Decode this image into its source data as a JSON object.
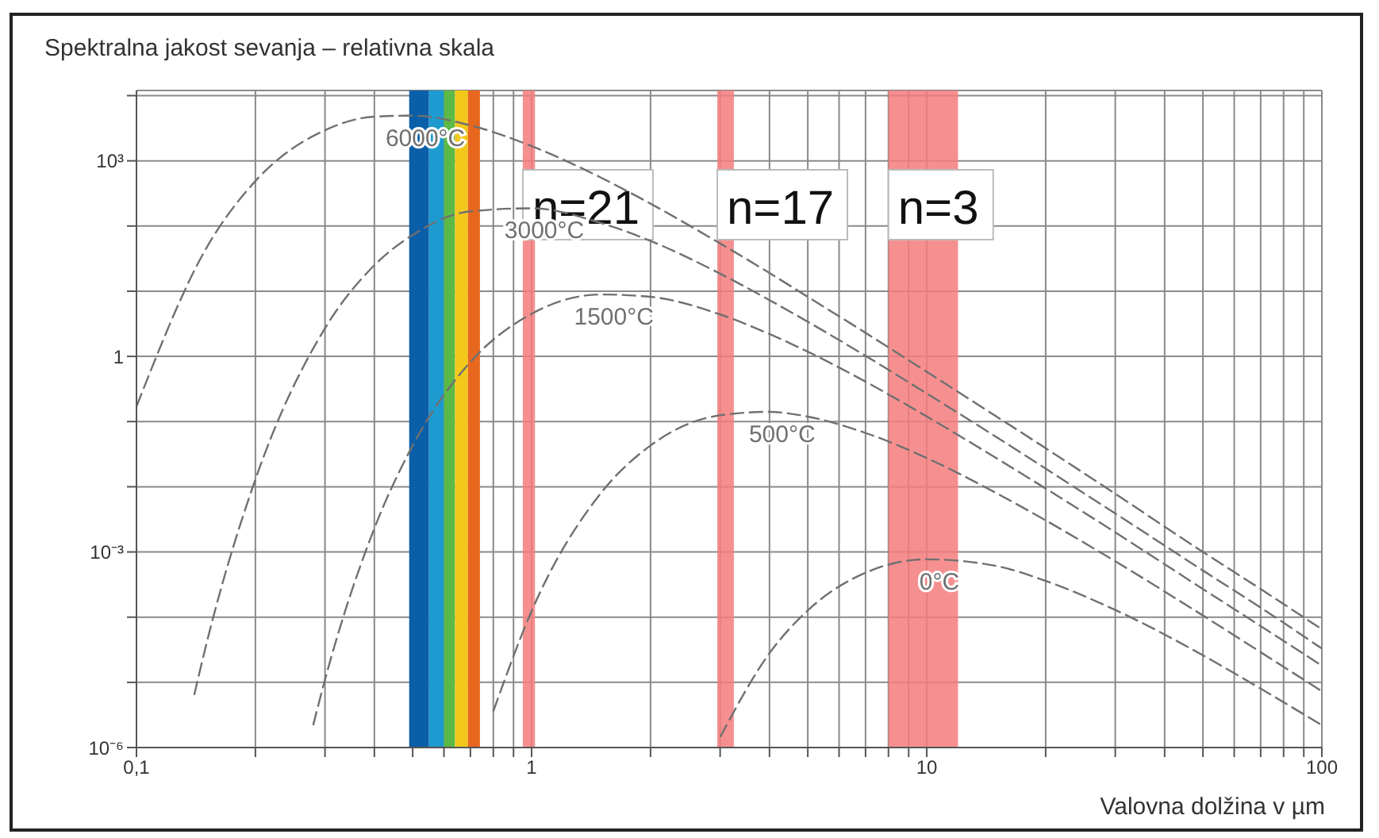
{
  "chart_data": {
    "type": "line",
    "title": "Spektralna jakost sevanja – relativna skala",
    "xlabel": "Valovna dolžina v µm",
    "log": "xy",
    "grid": true,
    "marker": "none",
    "line_style": "dashed",
    "xlim": [
      0.1,
      100
    ],
    "xticks": [
      {
        "value": 0.1,
        "label": "0,1"
      },
      {
        "value": 0.2,
        "label": null
      },
      {
        "value": 0.3,
        "label": null
      },
      {
        "value": 0.4,
        "label": null
      },
      {
        "value": 0.5,
        "label": null
      },
      {
        "value": 0.6,
        "label": null
      },
      {
        "value": 0.7,
        "label": null
      },
      {
        "value": 0.8,
        "label": null
      },
      {
        "value": 0.9,
        "label": null
      },
      1,
      {
        "value": 2,
        "label": null
      },
      {
        "value": 3,
        "label": null
      },
      {
        "value": 4,
        "label": null
      },
      {
        "value": 5,
        "label": null
      },
      {
        "value": 6,
        "label": null
      },
      {
        "value": 7,
        "label": null
      },
      {
        "value": 8,
        "label": null
      },
      {
        "value": 9,
        "label": null
      },
      10,
      {
        "value": 20,
        "label": null
      },
      {
        "value": 30,
        "label": null
      },
      {
        "value": 40,
        "label": null
      },
      {
        "value": 50,
        "label": null
      },
      {
        "value": 60,
        "label": null
      },
      {
        "value": 70,
        "label": null
      },
      {
        "value": 80,
        "label": null
      },
      {
        "value": 90,
        "label": null
      },
      100
    ],
    "ylim": [
      1e-06,
      12000
    ],
    "yticks": [
      {
        "value": 1e-06,
        "label": "10⁻⁶"
      },
      {
        "value": 1e-05,
        "label": null
      },
      {
        "value": 0.0001,
        "label": null
      },
      {
        "value": 0.001,
        "label": "10⁻³"
      },
      {
        "value": 0.01,
        "label": null
      },
      {
        "value": 0.1,
        "label": null
      },
      1,
      {
        "value": 10,
        "label": null
      },
      {
        "value": 100,
        "label": null
      },
      {
        "value": 1000,
        "label": "10³"
      },
      {
        "value": 10000,
        "label": null
      }
    ],
    "bands": [
      {
        "axis": "x",
        "from": 0.49,
        "to": 0.55,
        "color": "#0b5fa8"
      },
      {
        "axis": "x",
        "from": 0.55,
        "to": 0.6,
        "color": "#1d9bd0"
      },
      {
        "axis": "x",
        "from": 0.6,
        "to": 0.64,
        "color": "#5cb946"
      },
      {
        "axis": "x",
        "from": 0.64,
        "to": 0.69,
        "color": "#f2c81a"
      },
      {
        "axis": "x",
        "from": 0.69,
        "to": 0.74,
        "color": "#e8671e"
      },
      {
        "axis": "x",
        "from": 0.95,
        "to": 1.02,
        "color": "#f47c7c",
        "label": "n=21"
      },
      {
        "axis": "x",
        "from": 2.95,
        "to": 3.25,
        "color": "#f47c7c",
        "label": "n=17"
      },
      {
        "axis": "x",
        "from": 8,
        "to": 12,
        "color": "#f47c7c",
        "label": "n=3"
      }
    ],
    "series": [
      {
        "name": "6000°C",
        "color": "#707070",
        "x": [
          0.1,
          0.15,
          0.2,
          0.3,
          0.4,
          0.5,
          0.7,
          1,
          1.5,
          2,
          3,
          4,
          5,
          7,
          10,
          15,
          20,
          30,
          50,
          70,
          100
        ],
        "values": [
          0.17,
          45,
          490,
          2950,
          4750,
          4930,
          3500,
          1680,
          550,
          220,
          54,
          19,
          8.2,
          2.3,
          0.58,
          0.12,
          0.039,
          0.0078,
          0.001,
          0.00027,
          6.5e-05
        ]
      },
      {
        "name": "3000°C",
        "color": "#707070",
        "x": [
          0.14,
          0.15,
          0.2,
          0.3,
          0.4,
          0.5,
          0.7,
          1,
          1.5,
          2,
          3,
          4,
          5,
          7,
          10,
          15,
          20,
          30,
          50,
          70,
          100
        ],
        "values": [
          6.4e-06,
          3.7e-05,
          0.013,
          2.7,
          25,
          73,
          168,
          187,
          111,
          59,
          18.6,
          7.3,
          3.4,
          1.02,
          0.27,
          0.058,
          0.019,
          0.0039,
          0.00052,
          0.00014,
          3.3e-05
        ]
      },
      {
        "name": "1500°C",
        "color": "#707070",
        "x": [
          0.28,
          0.3,
          0.4,
          0.5,
          0.7,
          1,
          1.5,
          2,
          3,
          4,
          5,
          7,
          10,
          15,
          20,
          30,
          50,
          70,
          100
        ],
        "values": [
          2.2e-06,
          1.1e-05,
          0.0023,
          0.043,
          0.82,
          4.5,
          8.9,
          8.2,
          4.4,
          2.2,
          1.18,
          0.41,
          0.12,
          0.0275,
          0.0094,
          0.002,
          0.00027,
          7.3e-05,
          1.8e-05
        ]
      },
      {
        "name": "500°C",
        "color": "#707070",
        "x": [
          0.8,
          1,
          1.5,
          2,
          3,
          4,
          5,
          7,
          10,
          15,
          20,
          30,
          50,
          70,
          100
        ],
        "values": [
          3.6e-06,
          0.000124,
          0.0081,
          0.043,
          0.125,
          0.141,
          0.119,
          0.067,
          0.0276,
          0.008,
          0.00305,
          0.00072,
          0.000106,
          2.9e-05,
          7.3e-06
        ]
      },
      {
        "name": "0°C",
        "color": "#707070",
        "x": [
          3,
          4,
          5,
          7,
          10,
          15,
          20,
          30,
          50,
          70,
          100
        ],
        "values": [
          1.45e-06,
          2.8e-05,
          0.000127,
          0.00048,
          0.00077,
          0.00061,
          0.00036,
          0.000129,
          2.6e-05,
          8e-06,
          2.2e-06
        ]
      }
    ]
  }
}
